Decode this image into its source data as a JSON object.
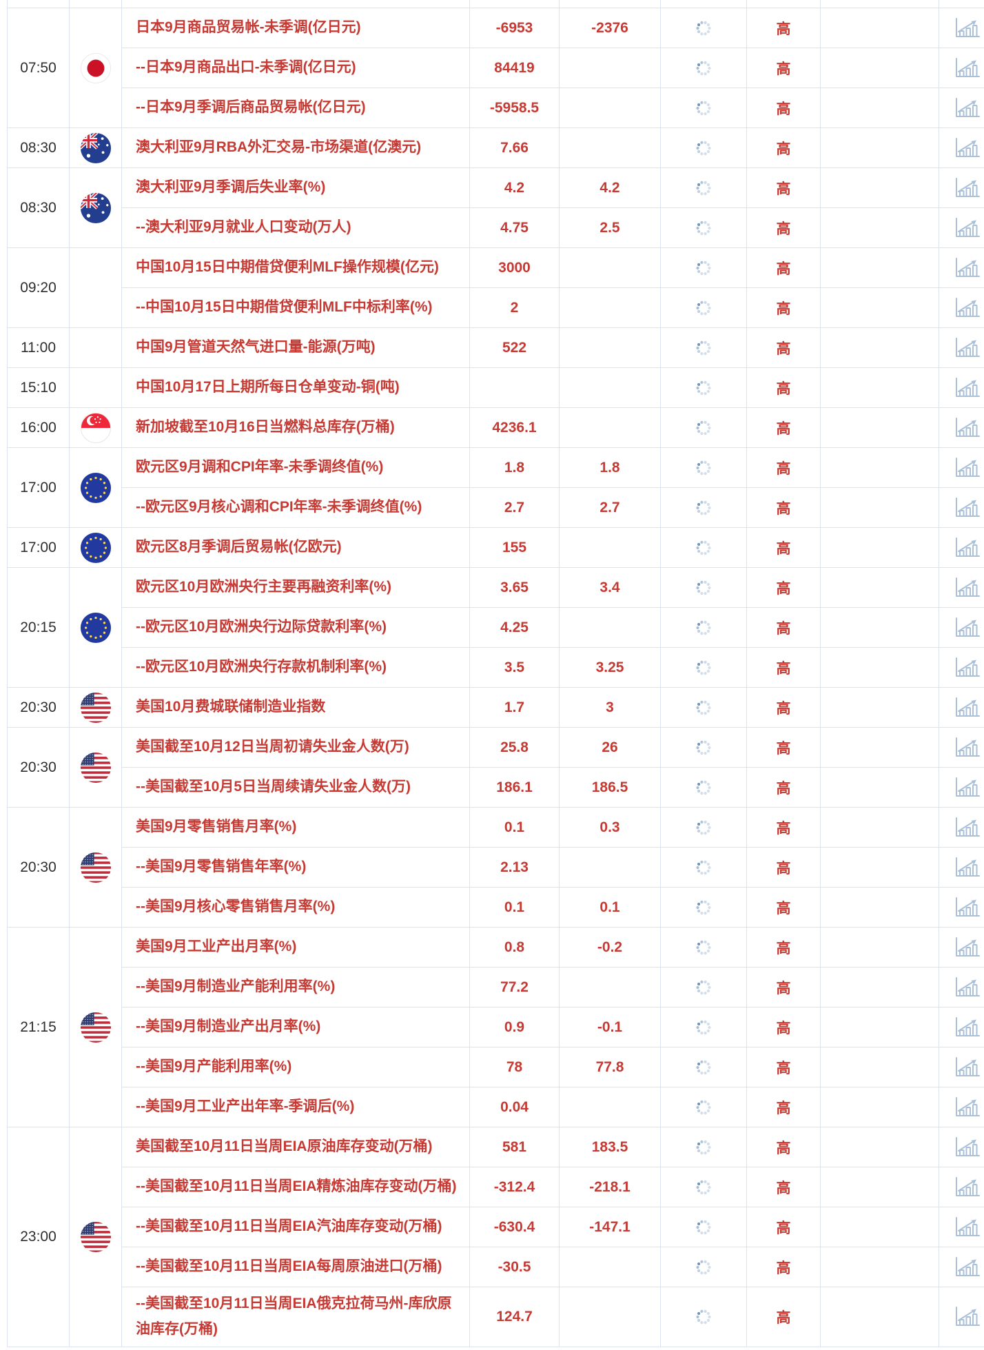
{
  "colors": {
    "accent_red": "#c63a33",
    "border_color": "#dce3f0",
    "time_text": "#2e2e2e",
    "icon_blue": "#a9c0d8",
    "spinner_dark": "#6f94bd"
  },
  "icons": {
    "spinner": "loading-spinner-icon",
    "chart": "bar-chart-icon"
  },
  "table": {
    "groups": [
      {
        "time": "07:50",
        "flag": "japan",
        "rows": [
          {
            "name": "日本9月商品贸易帐-未季调(亿日元)",
            "actual": "-6953",
            "forecast": "-2376",
            "importance": "高"
          },
          {
            "name": "--日本9月商品出口-未季调(亿日元)",
            "actual": "84419",
            "forecast": "",
            "importance": "高"
          },
          {
            "name": "--日本9月季调后商品贸易帐(亿日元)",
            "actual": "-5958.5",
            "forecast": "",
            "importance": "高"
          }
        ]
      },
      {
        "time": "08:30",
        "flag": "australia",
        "rows": [
          {
            "name": "澳大利亚9月RBA外汇交易-市场渠道(亿澳元)",
            "actual": "7.66",
            "forecast": "",
            "importance": "高"
          }
        ]
      },
      {
        "time": "08:30",
        "flag": "australia",
        "rows": [
          {
            "name": "澳大利亚9月季调后失业率(%)",
            "actual": "4.2",
            "forecast": "4.2",
            "importance": "高"
          },
          {
            "name": "--澳大利亚9月就业人口变动(万人)",
            "actual": "4.75",
            "forecast": "2.5",
            "importance": "高"
          }
        ]
      },
      {
        "time": "09:20",
        "flag": "",
        "rows": [
          {
            "name": "中国10月15日中期借贷便利MLF操作规模(亿元)",
            "actual": "3000",
            "forecast": "",
            "importance": "高"
          },
          {
            "name": "--中国10月15日中期借贷便利MLF中标利率(%)",
            "actual": "2",
            "forecast": "",
            "importance": "高"
          }
        ]
      },
      {
        "time": "11:00",
        "flag": "",
        "rows": [
          {
            "name": "中国9月管道天然气进口量-能源(万吨)",
            "actual": "522",
            "forecast": "",
            "importance": "高"
          }
        ]
      },
      {
        "time": "15:10",
        "flag": "",
        "rows": [
          {
            "name": "中国10月17日上期所每日仓单变动-铜(吨)",
            "actual": "",
            "forecast": "",
            "importance": "高"
          }
        ]
      },
      {
        "time": "16:00",
        "flag": "singapore",
        "rows": [
          {
            "name": "新加坡截至10月16日当燃料总库存(万桶)",
            "actual": "4236.1",
            "forecast": "",
            "importance": "高"
          }
        ]
      },
      {
        "time": "17:00",
        "flag": "eu",
        "rows": [
          {
            "name": "欧元区9月调和CPI年率-未季调终值(%)",
            "actual": "1.8",
            "forecast": "1.8",
            "importance": "高"
          },
          {
            "name": "--欧元区9月核心调和CPI年率-未季调终值(%)",
            "actual": "2.7",
            "forecast": "2.7",
            "importance": "高"
          }
        ]
      },
      {
        "time": "17:00",
        "flag": "eu",
        "rows": [
          {
            "name": "欧元区8月季调后贸易帐(亿欧元)",
            "actual": "155",
            "forecast": "",
            "importance": "高"
          }
        ]
      },
      {
        "time": "20:15",
        "flag": "eu",
        "rows": [
          {
            "name": "欧元区10月欧洲央行主要再融资利率(%)",
            "actual": "3.65",
            "forecast": "3.4",
            "importance": "高"
          },
          {
            "name": "--欧元区10月欧洲央行边际贷款利率(%)",
            "actual": "4.25",
            "forecast": "",
            "importance": "高"
          },
          {
            "name": "--欧元区10月欧洲央行存款机制利率(%)",
            "actual": "3.5",
            "forecast": "3.25",
            "importance": "高"
          }
        ]
      },
      {
        "time": "20:30",
        "flag": "us",
        "rows": [
          {
            "name": "美国10月费城联储制造业指数",
            "actual": "1.7",
            "forecast": "3",
            "importance": "高"
          }
        ]
      },
      {
        "time": "20:30",
        "flag": "us",
        "rows": [
          {
            "name": "美国截至10月12日当周初请失业金人数(万)",
            "actual": "25.8",
            "forecast": "26",
            "importance": "高"
          },
          {
            "name": "--美国截至10月5日当周续请失业金人数(万)",
            "actual": "186.1",
            "forecast": "186.5",
            "importance": "高"
          }
        ]
      },
      {
        "time": "20:30",
        "flag": "us",
        "rows": [
          {
            "name": "美国9月零售销售月率(%)",
            "actual": "0.1",
            "forecast": "0.3",
            "importance": "高"
          },
          {
            "name": "--美国9月零售销售年率(%)",
            "actual": "2.13",
            "forecast": "",
            "importance": "高"
          },
          {
            "name": "--美国9月核心零售销售月率(%)",
            "actual": "0.1",
            "forecast": "0.1",
            "importance": "高"
          }
        ]
      },
      {
        "time": "21:15",
        "flag": "us",
        "rows": [
          {
            "name": "美国9月工业产出月率(%)",
            "actual": "0.8",
            "forecast": "-0.2",
            "importance": "高"
          },
          {
            "name": "--美国9月制造业产能利用率(%)",
            "actual": "77.2",
            "forecast": "",
            "importance": "高"
          },
          {
            "name": "--美国9月制造业产出月率(%)",
            "actual": "0.9",
            "forecast": "-0.1",
            "importance": "高"
          },
          {
            "name": "--美国9月产能利用率(%)",
            "actual": "78",
            "forecast": "77.8",
            "importance": "高"
          },
          {
            "name": "--美国9月工业产出年率-季调后(%)",
            "actual": "0.04",
            "forecast": "",
            "importance": "高"
          }
        ]
      },
      {
        "time": "23:00",
        "flag": "us",
        "rows": [
          {
            "name": "美国截至10月11日当周EIA原油库存变动(万桶)",
            "actual": "581",
            "forecast": "183.5",
            "importance": "高"
          },
          {
            "name": "--美国截至10月11日当周EIA精炼油库存变动(万桶)",
            "actual": "-312.4",
            "forecast": "-218.1",
            "importance": "高"
          },
          {
            "name": "--美国截至10月11日当周EIA汽油库存变动(万桶)",
            "actual": "-630.4",
            "forecast": "-147.1",
            "importance": "高"
          },
          {
            "name": "--美国截至10月11日当周EIA每周原油进口(万桶)",
            "actual": "-30.5",
            "forecast": "",
            "importance": "高"
          },
          {
            "name": "--美国截至10月11日当周EIA俄克拉荷马州-库欣原油库存(万桶)",
            "actual": "124.7",
            "forecast": "",
            "importance": "高"
          }
        ]
      }
    ]
  }
}
